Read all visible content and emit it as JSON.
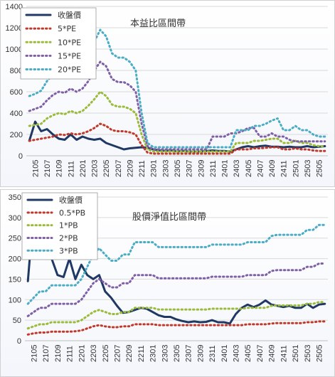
{
  "charts": [
    {
      "id": "pe",
      "title": "本益比區間帶",
      "ymax": 1400,
      "ystep": 200,
      "legend": [
        "收盤價",
        "5*PE",
        "10*PE",
        "15*PE",
        "20*PE"
      ],
      "colors": [
        "#1f3864",
        "#c0392b",
        "#9bbb3b",
        "#7f5fa6",
        "#4bacc6"
      ],
      "xticks": [
        "2105",
        "2107",
        "2109",
        "2111",
        "2201",
        "2203",
        "2205",
        "2207",
        "2209",
        "2211",
        "2301",
        "2303",
        "2305",
        "2307",
        "2309",
        "2311",
        "2401",
        "2403",
        "2405",
        "2407",
        "2409",
        "2411",
        "2501",
        "2503",
        "2505"
      ]
    },
    {
      "id": "pb",
      "title": "股價淨值比區間帶",
      "ymax": 350,
      "ystep": 50,
      "legend": [
        "收盤價",
        "0.5*PB",
        "1*PB",
        "2*PB",
        "3*PB"
      ],
      "colors": [
        "#1f3864",
        "#c0392b",
        "#9bbb3b",
        "#7f5fa6",
        "#4bacc6"
      ],
      "xticks": [
        "2105",
        "2107",
        "2109",
        "2111",
        "2201",
        "2203",
        "2205",
        "2207",
        "2209",
        "2211",
        "2301",
        "2303",
        "2305",
        "2307",
        "2309",
        "2311",
        "2401",
        "2403",
        "2405",
        "2407",
        "2409",
        "2411",
        "2501",
        "2503",
        "2505"
      ]
    }
  ],
  "chart_data": [
    {
      "type": "line",
      "title": "本益比區間帶",
      "ylim": [
        0,
        1400
      ],
      "x": [
        "2104",
        "2105",
        "2106",
        "2107",
        "2108",
        "2109",
        "2110",
        "2111",
        "2112",
        "2201",
        "2202",
        "2203",
        "2204",
        "2205",
        "2206",
        "2207",
        "2208",
        "2209",
        "2210",
        "2211",
        "2212",
        "2301",
        "2302",
        "2303",
        "2304",
        "2305",
        "2306",
        "2307",
        "2308",
        "2309",
        "2310",
        "2311",
        "2312",
        "2401",
        "2402",
        "2403",
        "2404",
        "2405",
        "2406",
        "2407",
        "2408",
        "2409",
        "2410",
        "2411",
        "2412",
        "2501",
        "2502",
        "2503",
        "2504",
        "2505",
        "2506"
      ],
      "series": [
        {
          "name": "收盤價",
          "values": [
            140,
            320,
            230,
            250,
            200,
            160,
            150,
            200,
            150,
            180,
            160,
            150,
            160,
            120,
            100,
            80,
            60,
            70,
            75,
            80,
            75,
            60,
            50,
            45,
            50,
            40,
            45,
            40,
            40,
            40,
            45,
            50,
            45,
            45,
            40,
            60,
            80,
            90,
            80,
            90,
            95,
            85,
            85,
            80,
            85,
            80,
            80,
            90,
            80,
            85,
            90
          ]
        },
        {
          "name": "5*PE",
          "values": [
            140,
            150,
            160,
            170,
            180,
            200,
            195,
            210,
            200,
            210,
            230,
            260,
            300,
            280,
            240,
            230,
            230,
            220,
            200,
            100,
            30,
            20,
            20,
            20,
            20,
            20,
            20,
            20,
            20,
            20,
            20,
            20,
            20,
            20,
            20,
            60,
            60,
            60,
            70,
            70,
            75,
            80,
            80,
            60,
            60,
            70,
            60,
            60,
            50,
            45,
            45
          ]
        },
        {
          "name": "10*PE",
          "values": [
            280,
            290,
            300,
            350,
            380,
            400,
            390,
            420,
            400,
            420,
            470,
            530,
            600,
            560,
            480,
            460,
            460,
            440,
            400,
            200,
            60,
            40,
            40,
            40,
            40,
            40,
            40,
            40,
            40,
            40,
            40,
            40,
            40,
            40,
            40,
            120,
            120,
            120,
            140,
            140,
            150,
            160,
            160,
            120,
            120,
            140,
            120,
            120,
            100,
            90,
            90
          ]
        },
        {
          "name": "15*PE",
          "values": [
            420,
            440,
            460,
            520,
            570,
            600,
            590,
            630,
            600,
            630,
            700,
            800,
            880,
            840,
            720,
            690,
            690,
            660,
            600,
            300,
            90,
            60,
            60,
            60,
            60,
            60,
            60,
            60,
            60,
            60,
            60,
            180,
            180,
            180,
            210,
            210,
            230,
            260,
            260,
            180,
            180,
            210,
            180,
            180,
            150,
            135,
            135,
            135,
            135,
            135,
            135
          ]
        },
        {
          "name": "20*PE",
          "values": [
            560,
            580,
            610,
            700,
            760,
            800,
            780,
            840,
            800,
            840,
            940,
            1070,
            1180,
            1120,
            960,
            920,
            920,
            880,
            800,
            400,
            120,
            80,
            80,
            80,
            80,
            80,
            80,
            80,
            80,
            80,
            80,
            80,
            80,
            80,
            80,
            240,
            240,
            240,
            280,
            280,
            300,
            330,
            350,
            240,
            240,
            280,
            240,
            240,
            200,
            180,
            180
          ]
        }
      ]
    },
    {
      "type": "line",
      "title": "股價淨值比區間帶",
      "ylim": [
        0,
        350
      ],
      "x": [
        "2104",
        "2105",
        "2106",
        "2107",
        "2108",
        "2109",
        "2110",
        "2111",
        "2112",
        "2201",
        "2202",
        "2203",
        "2204",
        "2205",
        "2206",
        "2207",
        "2208",
        "2209",
        "2210",
        "2211",
        "2212",
        "2301",
        "2302",
        "2303",
        "2304",
        "2305",
        "2306",
        "2307",
        "2308",
        "2309",
        "2310",
        "2311",
        "2312",
        "2401",
        "2402",
        "2403",
        "2404",
        "2405",
        "2406",
        "2407",
        "2408",
        "2409",
        "2410",
        "2411",
        "2412",
        "2501",
        "2502",
        "2503",
        "2504",
        "2505",
        "2506"
      ],
      "series": [
        {
          "name": "收盤價",
          "values": [
            145,
            320,
            230,
            250,
            200,
            160,
            155,
            200,
            150,
            185,
            160,
            150,
            160,
            120,
            105,
            85,
            68,
            70,
            75,
            80,
            78,
            70,
            62,
            58,
            58,
            52,
            48,
            45,
            47,
            45,
            46,
            50,
            45,
            45,
            42,
            65,
            80,
            88,
            82,
            88,
            98,
            88,
            85,
            82,
            85,
            80,
            80,
            90,
            80,
            88,
            90
          ]
        },
        {
          "name": "0.5*PB",
          "values": [
            15,
            18,
            20,
            20,
            22,
            22,
            22,
            22,
            23,
            25,
            30,
            35,
            38,
            35,
            33,
            33,
            35,
            35,
            40,
            40,
            40,
            40,
            38,
            38,
            38,
            38,
            38,
            38,
            38,
            38,
            38,
            38,
            38,
            38,
            38,
            38,
            38,
            40,
            40,
            40,
            40,
            42,
            43,
            43,
            43,
            43,
            43,
            45,
            45,
            47,
            47
          ]
        },
        {
          "name": "1*PB",
          "values": [
            30,
            35,
            40,
            40,
            45,
            45,
            45,
            45,
            45,
            50,
            60,
            70,
            75,
            70,
            65,
            65,
            70,
            70,
            80,
            80,
            80,
            80,
            76,
            76,
            76,
            76,
            76,
            76,
            76,
            76,
            76,
            78,
            78,
            78,
            78,
            78,
            78,
            80,
            80,
            80,
            80,
            85,
            86,
            86,
            86,
            86,
            86,
            90,
            90,
            94,
            94
          ]
        },
        {
          "name": "2*PB",
          "values": [
            60,
            70,
            80,
            80,
            90,
            90,
            90,
            90,
            90,
            100,
            120,
            140,
            150,
            140,
            130,
            130,
            140,
            140,
            160,
            160,
            160,
            160,
            152,
            152,
            152,
            152,
            152,
            152,
            152,
            152,
            152,
            156,
            156,
            156,
            156,
            156,
            156,
            160,
            160,
            160,
            160,
            170,
            172,
            172,
            172,
            172,
            172,
            180,
            180,
            188,
            188
          ]
        },
        {
          "name": "3*PB",
          "values": [
            90,
            105,
            120,
            120,
            135,
            135,
            135,
            135,
            135,
            150,
            180,
            210,
            225,
            210,
            195,
            195,
            210,
            210,
            240,
            240,
            240,
            240,
            228,
            228,
            228,
            228,
            228,
            228,
            228,
            228,
            228,
            234,
            234,
            234,
            234,
            234,
            234,
            240,
            240,
            240,
            240,
            255,
            258,
            258,
            258,
            258,
            258,
            270,
            270,
            282,
            282
          ]
        }
      ]
    }
  ]
}
